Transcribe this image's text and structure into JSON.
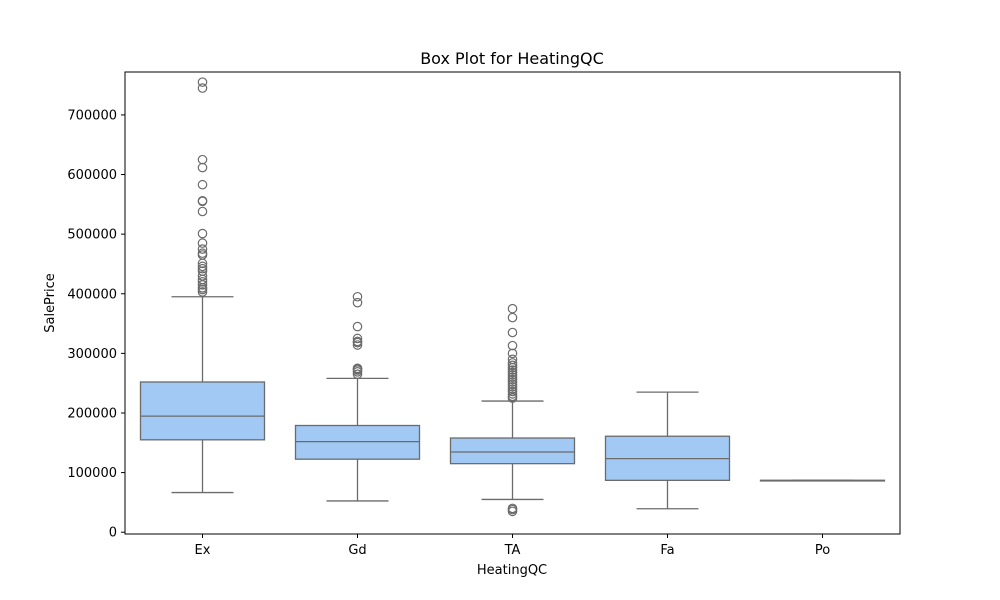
{
  "chart_data": {
    "type": "box",
    "title": "Box Plot for HeatingQC",
    "xlabel": "HeatingQC",
    "ylabel": "SalePrice",
    "ylim": [
      -3000,
      772000
    ],
    "yticks": [
      0,
      100000,
      200000,
      300000,
      400000,
      500000,
      600000,
      700000
    ],
    "ytick_labels": [
      "0",
      "100000",
      "200000",
      "300000",
      "400000",
      "500000",
      "600000",
      "700000"
    ],
    "grid": false,
    "colors": {
      "box_fill": "#a1c9f4",
      "line": "#6b6b6b",
      "axis": "#000000"
    },
    "categories": [
      "Ex",
      "Gd",
      "TA",
      "Fa",
      "Po"
    ],
    "boxes": [
      {
        "category": "Ex",
        "whisker_low": 66500,
        "q1": 155000,
        "median": 194700,
        "q3": 252000,
        "whisker_high": 395000,
        "outliers": [
          403000,
          407000,
          410000,
          415000,
          420000,
          424000,
          430000,
          438000,
          442000,
          446000,
          451000,
          465000,
          468000,
          475000,
          485000,
          501000,
          538000,
          555000,
          556000,
          582900,
          611657,
          625000,
          745000,
          755000
        ]
      },
      {
        "category": "Gd",
        "whisker_low": 52500,
        "q1": 122500,
        "median": 152000,
        "q3": 179000,
        "whisker_high": 258000,
        "outliers": [
          265000,
          269000,
          272000,
          274000,
          275000,
          314000,
          318000,
          320000,
          325000,
          345000,
          385000,
          395000
        ]
      },
      {
        "category": "TA",
        "whisker_low": 55000,
        "q1": 115000,
        "median": 134500,
        "q3": 158000,
        "whisker_high": 220000,
        "outliers": [
          34900,
          37900,
          40000,
          225000,
          228000,
          232000,
          236000,
          240000,
          244000,
          248000,
          252000,
          256000,
          260000,
          264000,
          268000,
          272000,
          276000,
          280000,
          284000,
          290000,
          300000,
          313000,
          335000,
          360000,
          375000
        ]
      },
      {
        "category": "Fa",
        "whisker_low": 39300,
        "q1": 87000,
        "median": 123500,
        "q3": 161000,
        "whisker_high": 235000,
        "outliers": []
      },
      {
        "category": "Po",
        "whisker_low": 87000,
        "q1": 87000,
        "median": 87000,
        "q3": 87000,
        "whisker_high": 87000,
        "outliers": []
      }
    ]
  }
}
